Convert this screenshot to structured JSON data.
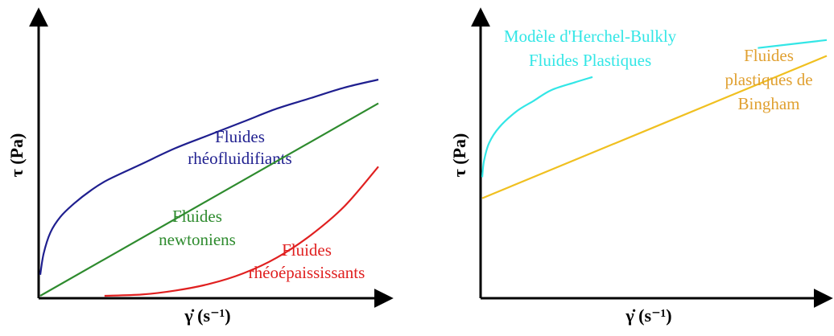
{
  "chart_data": [
    {
      "type": "line",
      "title": "",
      "xlabel": "γ̇ (s⁻¹)",
      "ylabel": "τ (Pa)",
      "grid": false,
      "xlim": [
        0,
        10
      ],
      "ylim": [
        0,
        10
      ],
      "series": [
        {
          "name": "Fluides rhéofluidifiants",
          "label_lines": [
            "Fluides",
            "rhéofluidifiants"
          ],
          "color": "#1f1f8f",
          "x": [
            0,
            0.1,
            0.3,
            0.6,
            1,
            1.5,
            2,
            3,
            4,
            5,
            6,
            7,
            8,
            9,
            10
          ],
          "y": [
            0.8,
            1.6,
            2.4,
            3.0,
            3.5,
            4.0,
            4.4,
            5.0,
            5.6,
            6.1,
            6.6,
            7.1,
            7.5,
            7.9,
            8.2
          ]
        },
        {
          "name": "Fluides newtoniens",
          "label_lines": [
            "Fluides",
            "newtoniens"
          ],
          "color": "#2e8b2e",
          "x": [
            0,
            10
          ],
          "y": [
            0,
            7.3
          ]
        },
        {
          "name": "Fluides rhéoépaississants",
          "label_lines": [
            "Fluides",
            "rhéoépaississants"
          ],
          "color": "#e02020",
          "x": [
            1.9,
            3,
            4,
            5,
            6,
            7,
            8,
            9,
            10
          ],
          "y": [
            0,
            0.05,
            0.2,
            0.45,
            0.85,
            1.45,
            2.3,
            3.4,
            4.9
          ]
        }
      ]
    },
    {
      "type": "line",
      "title": "",
      "xlabel": "γ̇ (s⁻¹)",
      "ylabel": "τ (Pa)",
      "grid": false,
      "xlim": [
        0,
        10
      ],
      "ylim": [
        0,
        10
      ],
      "series": [
        {
          "name": "Modèle d'Herchel-Bulkly Fluides Plastiques",
          "label_lines": [
            "Modèle d'Herchel-Bulkly",
            "Fluides Plastiques"
          ],
          "color": "#33e6e6",
          "x": [
            0,
            0.05,
            0.2,
            0.5,
            1,
            1.5,
            2,
            2.7,
            3.2,
            4,
            6,
            8,
            10
          ],
          "y": [
            4.5,
            5.1,
            5.8,
            6.4,
            7.0,
            7.4,
            7.8,
            8.1,
            8.3,
            8.6,
            9.0,
            9.4,
            9.7
          ],
          "gap_x": [
            3.2,
            7.9
          ]
        },
        {
          "name": "Fluides plastiques de Bingham",
          "label_lines": [
            "Fluides",
            "plastiques de",
            "Bingham"
          ],
          "color": "#f0c020",
          "label_color": "#e0a030",
          "x": [
            0,
            10
          ],
          "y": [
            3.7,
            9.1
          ]
        }
      ]
    }
  ]
}
